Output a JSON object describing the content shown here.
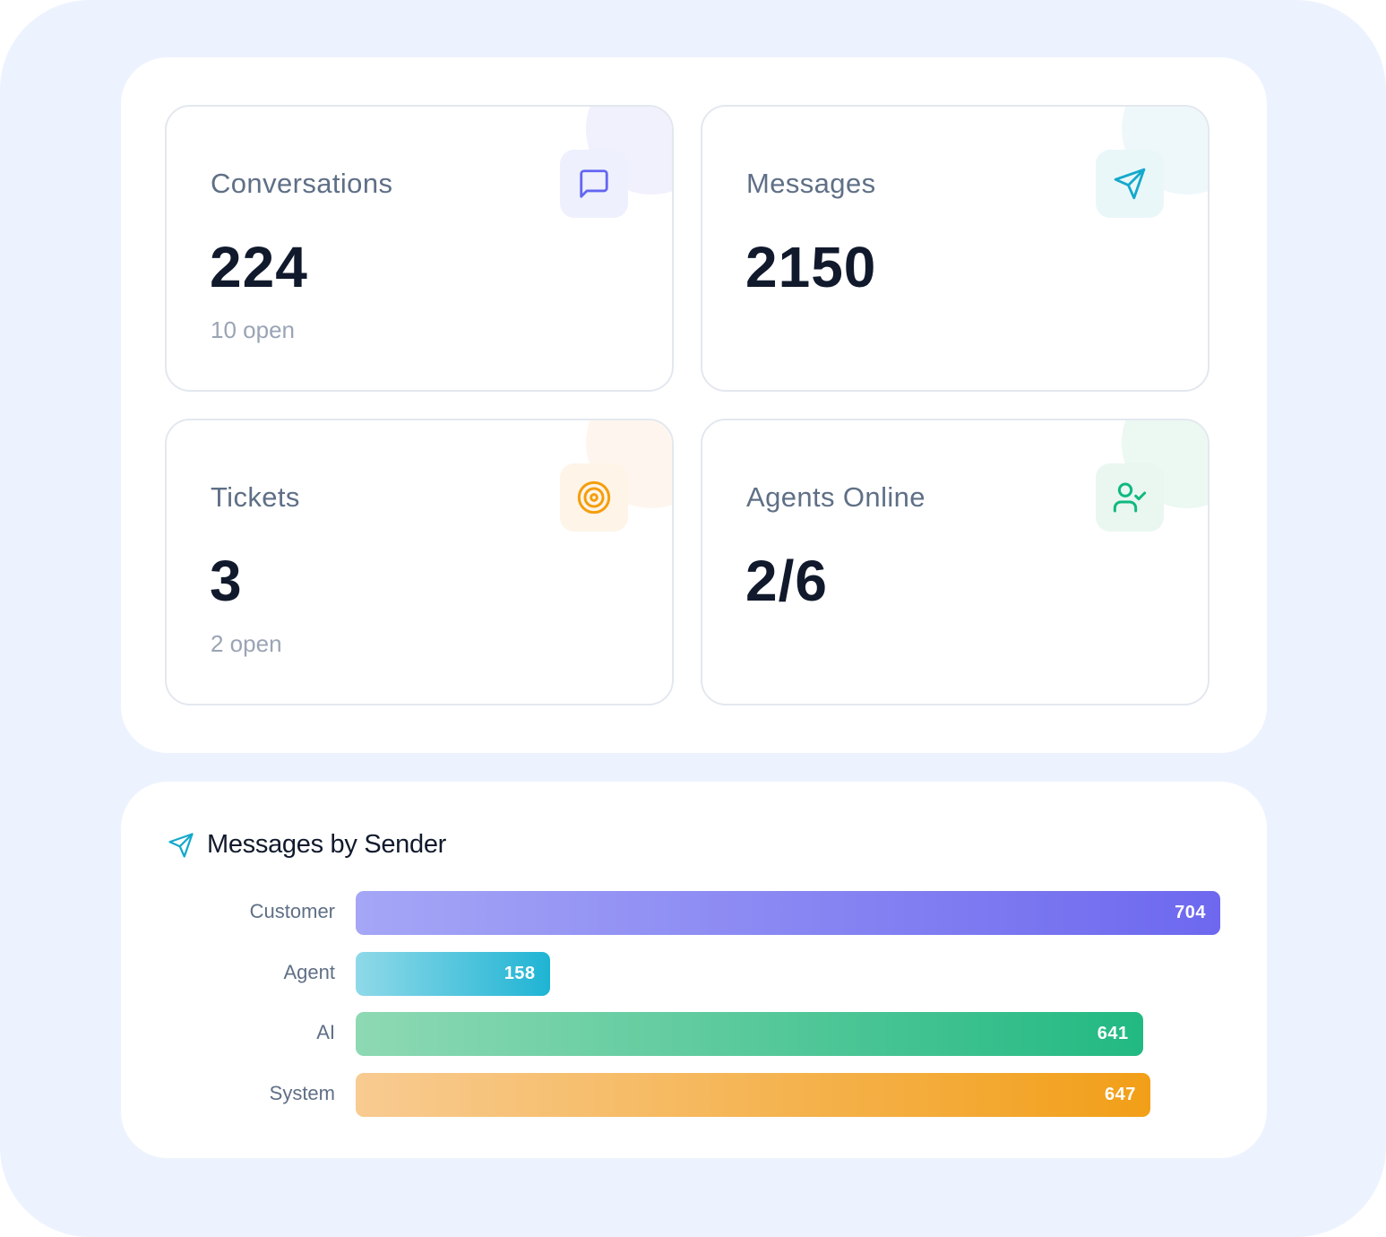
{
  "stats": [
    {
      "label": "Conversations",
      "value": "224",
      "sub": "10 open",
      "icon": "message-square-icon",
      "accent": "#6366f1",
      "tint": "#eef0fd",
      "blob": "#f1f0fd"
    },
    {
      "label": "Messages",
      "value": "2150",
      "sub": "",
      "icon": "send-icon",
      "accent": "#14a9cc",
      "tint": "#eaf7f9",
      "blob": "#eef8fb"
    },
    {
      "label": "Tickets",
      "value": "3",
      "sub": "2 open",
      "icon": "target-icon",
      "accent": "#f59e0b",
      "tint": "#fef4e8",
      "blob": "#fef6ee"
    },
    {
      "label": "Agents Online",
      "value": "2/6",
      "sub": "",
      "icon": "user-check-icon",
      "accent": "#10b981",
      "tint": "#e9f7f0",
      "blob": "#ecf8f2"
    }
  ],
  "chart_data": {
    "type": "bar",
    "orientation": "horizontal",
    "title": "Messages by Sender",
    "categories": [
      "Customer",
      "Agent",
      "AI",
      "System"
    ],
    "values": [
      704,
      158,
      641,
      647
    ],
    "colors": [
      [
        "#a5a6f6",
        "#6d68ef"
      ],
      [
        "#8fd9e8",
        "#1fb4d4"
      ],
      [
        "#8ed9b4",
        "#22b982"
      ],
      [
        "#f8cb91",
        "#f29f18"
      ]
    ]
  }
}
